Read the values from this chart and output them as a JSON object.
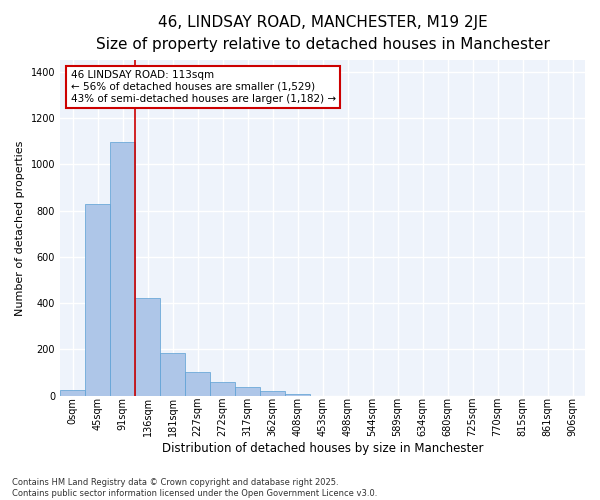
{
  "title_line1": "46, LINDSAY ROAD, MANCHESTER, M19 2JE",
  "title_line2": "Size of property relative to detached houses in Manchester",
  "xlabel": "Distribution of detached houses by size in Manchester",
  "ylabel": "Number of detached properties",
  "categories": [
    "0sqm",
    "45sqm",
    "91sqm",
    "136sqm",
    "181sqm",
    "227sqm",
    "272sqm",
    "317sqm",
    "362sqm",
    "408sqm",
    "453sqm",
    "498sqm",
    "544sqm",
    "589sqm",
    "634sqm",
    "680sqm",
    "725sqm",
    "770sqm",
    "815sqm",
    "861sqm",
    "906sqm"
  ],
  "values": [
    25,
    830,
    1095,
    420,
    185,
    100,
    57,
    35,
    18,
    8,
    0,
    0,
    0,
    0,
    0,
    0,
    0,
    0,
    0,
    0,
    0
  ],
  "bar_color": "#aec6e8",
  "bar_edge_color": "#5a9fd4",
  "vline_color": "#cc0000",
  "vline_x": 2.49,
  "annotation_text": "46 LINDSAY ROAD: 113sqm\n← 56% of detached houses are smaller (1,529)\n43% of semi-detached houses are larger (1,182) →",
  "annotation_box_color": "#cc0000",
  "annotation_box_facecolor": "white",
  "ylim": [
    0,
    1450
  ],
  "yticks": [
    0,
    200,
    400,
    600,
    800,
    1000,
    1200,
    1400
  ],
  "bg_color": "#eef3fb",
  "grid_color": "#ffffff",
  "footnote": "Contains HM Land Registry data © Crown copyright and database right 2025.\nContains public sector information licensed under the Open Government Licence v3.0.",
  "title_fontsize": 11,
  "subtitle_fontsize": 9.5,
  "xlabel_fontsize": 8.5,
  "ylabel_fontsize": 8,
  "tick_fontsize": 7,
  "annot_fontsize": 7.5,
  "footnote_fontsize": 6
}
